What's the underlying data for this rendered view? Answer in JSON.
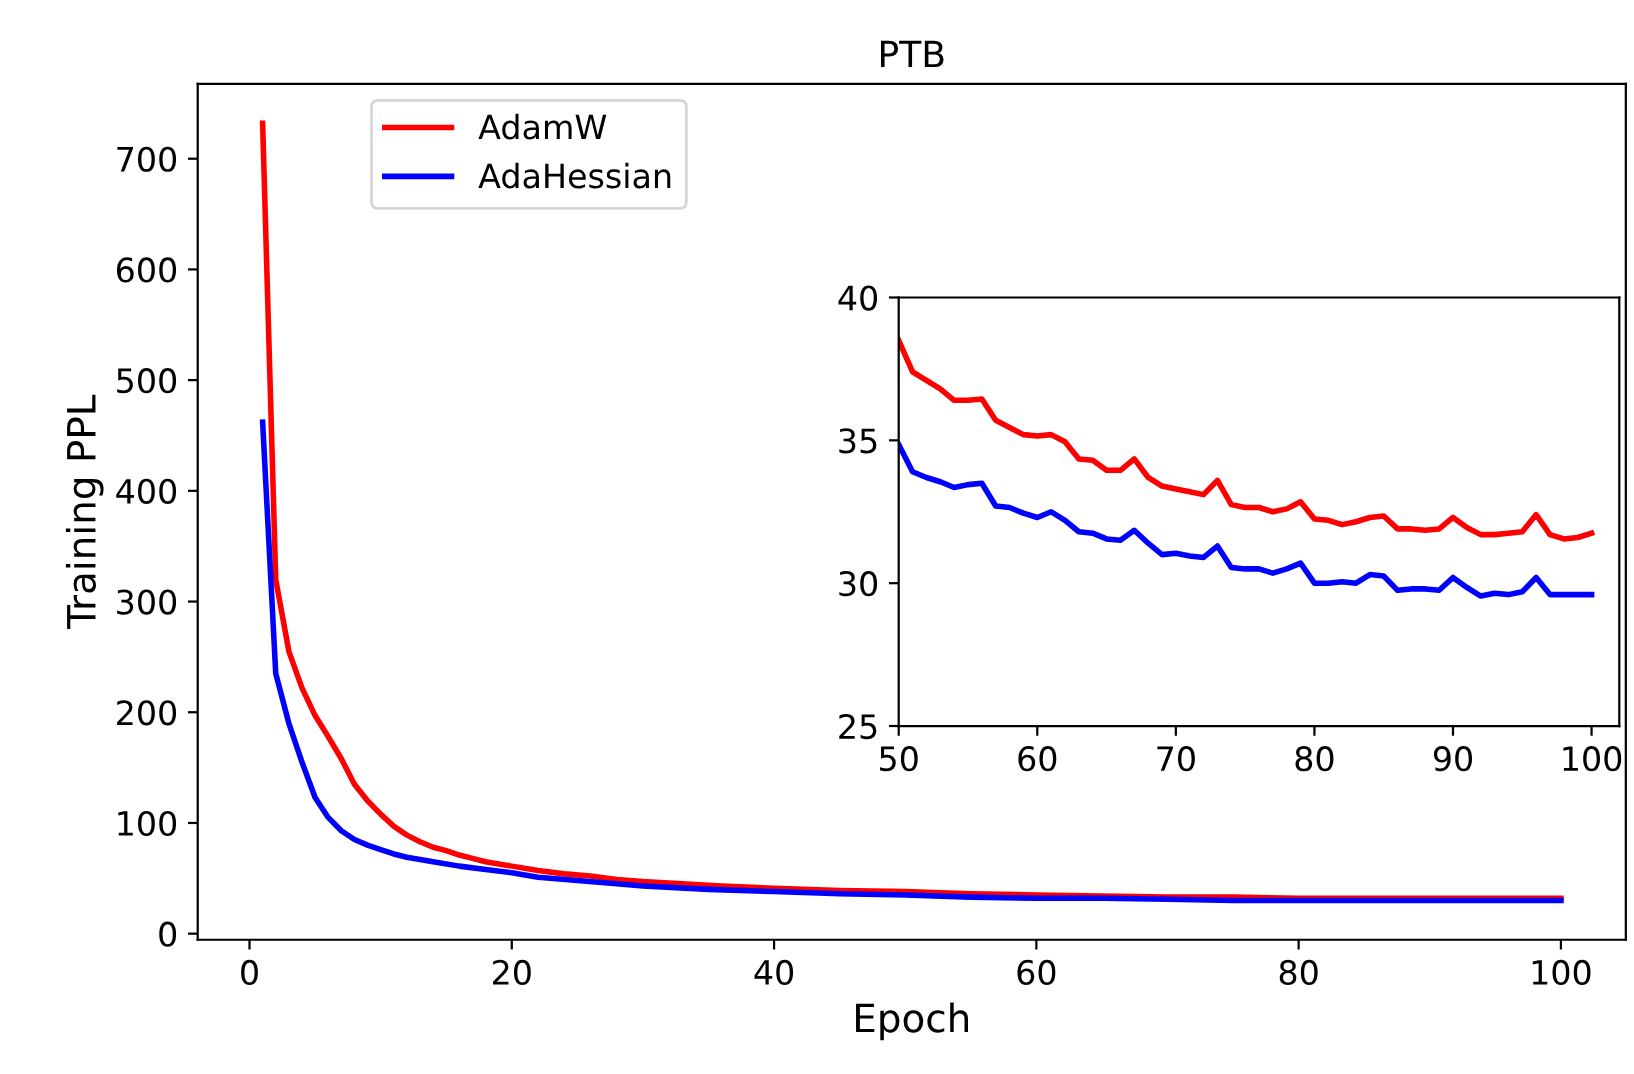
{
  "chart_data": [
    {
      "type": "line",
      "title": "PTB",
      "xlabel": "Epoch",
      "ylabel": "Training PPL",
      "xlim": [
        -3.95,
        104.95
      ],
      "xticks": [
        0,
        20,
        40,
        60,
        80,
        100
      ],
      "ylim": [
        -5.5,
        767.7
      ],
      "yticks": [
        0,
        100,
        200,
        300,
        400,
        500,
        600,
        700
      ],
      "grid": false,
      "legend": "top left",
      "line_style": "solid",
      "marker": "none",
      "series": [
        {
          "name": "AdamW",
          "color": "#ff0000",
          "x": [
            1,
            2,
            3,
            4,
            5,
            6,
            7,
            8,
            9,
            10,
            11,
            12,
            13,
            14,
            15,
            16,
            17,
            18,
            19,
            20,
            22,
            24,
            26,
            28,
            30,
            33,
            36,
            40,
            45,
            50,
            55,
            60,
            65,
            70,
            75,
            80,
            85,
            90,
            95,
            100
          ],
          "values": [
            732,
            320,
            255,
            222,
            197,
            178,
            158,
            135,
            120,
            108,
            97,
            89,
            83,
            78,
            75,
            71,
            68,
            65,
            63,
            61,
            57,
            54,
            52,
            49,
            47,
            45,
            43,
            41,
            39,
            38,
            36,
            35,
            34,
            33,
            33,
            32,
            32,
            32,
            32,
            32
          ]
        },
        {
          "name": "AdaHessian",
          "color": "#0000ff",
          "x": [
            1,
            2,
            3,
            4,
            5,
            6,
            7,
            8,
            9,
            10,
            11,
            12,
            14,
            16,
            18,
            20,
            22,
            25,
            28,
            30,
            35,
            40,
            45,
            50,
            55,
            60,
            65,
            70,
            75,
            80,
            85,
            90,
            95,
            100
          ],
          "values": [
            462,
            235,
            190,
            155,
            123,
            105,
            93,
            85,
            80,
            76,
            72,
            69,
            65,
            61,
            58,
            55,
            51,
            48,
            45,
            43,
            40,
            38,
            36,
            35,
            33,
            32,
            32,
            31,
            30,
            30,
            30,
            30,
            30,
            30
          ]
        }
      ]
    },
    {
      "type": "line",
      "xlim": [
        50,
        102
      ],
      "xticks": [
        50,
        60,
        70,
        80,
        90,
        100
      ],
      "ylim": [
        25,
        40
      ],
      "yticks": [
        25,
        30,
        35,
        40
      ],
      "grid": false,
      "line_style": "solid",
      "marker": "none",
      "series": [
        {
          "color": "#ff0000",
          "x": [
            50,
            51,
            52,
            53,
            54,
            55,
            56,
            57,
            58,
            59,
            60,
            61,
            62,
            63,
            64,
            65,
            66,
            67,
            68,
            69,
            70,
            71,
            72,
            73,
            74,
            75,
            76,
            77,
            78,
            79,
            80,
            81,
            82,
            83,
            84,
            85,
            86,
            87,
            88,
            89,
            90,
            91,
            92,
            93,
            94,
            95,
            96,
            97,
            98,
            99,
            100
          ],
          "values": [
            38.5,
            37.4,
            37.1,
            36.8,
            36.4,
            36.4,
            36.45,
            35.7,
            35.45,
            35.2,
            35.15,
            35.2,
            34.95,
            34.35,
            34.3,
            33.95,
            33.95,
            34.35,
            33.7,
            33.4,
            33.3,
            33.2,
            33.1,
            33.6,
            32.75,
            32.65,
            32.65,
            32.5,
            32.6,
            32.85,
            32.25,
            32.2,
            32.05,
            32.15,
            32.3,
            32.35,
            31.9,
            31.9,
            31.85,
            31.9,
            32.3,
            31.95,
            31.7,
            31.7,
            31.75,
            31.8,
            32.4,
            31.7,
            31.55,
            31.6,
            31.75
          ]
        },
        {
          "color": "#0000ff",
          "x": [
            50,
            51,
            52,
            53,
            54,
            55,
            56,
            57,
            58,
            59,
            60,
            61,
            62,
            63,
            64,
            65,
            66,
            67,
            68,
            69,
            70,
            71,
            72,
            73,
            74,
            75,
            76,
            77,
            78,
            79,
            80,
            81,
            82,
            83,
            84,
            85,
            86,
            87,
            88,
            89,
            90,
            91,
            92,
            93,
            94,
            95,
            96,
            97,
            98,
            99,
            100
          ],
          "values": [
            34.85,
            33.9,
            33.7,
            33.55,
            33.35,
            33.45,
            33.5,
            32.7,
            32.65,
            32.45,
            32.3,
            32.5,
            32.2,
            31.8,
            31.75,
            31.55,
            31.5,
            31.85,
            31.4,
            31.0,
            31.05,
            30.95,
            30.9,
            31.3,
            30.55,
            30.5,
            30.5,
            30.35,
            30.5,
            30.7,
            30.0,
            30.0,
            30.05,
            30.0,
            30.3,
            30.25,
            29.75,
            29.8,
            29.8,
            29.75,
            30.2,
            29.85,
            29.55,
            29.65,
            29.6,
            29.7,
            30.2,
            29.6,
            29.6,
            29.6,
            29.6
          ]
        }
      ]
    }
  ]
}
